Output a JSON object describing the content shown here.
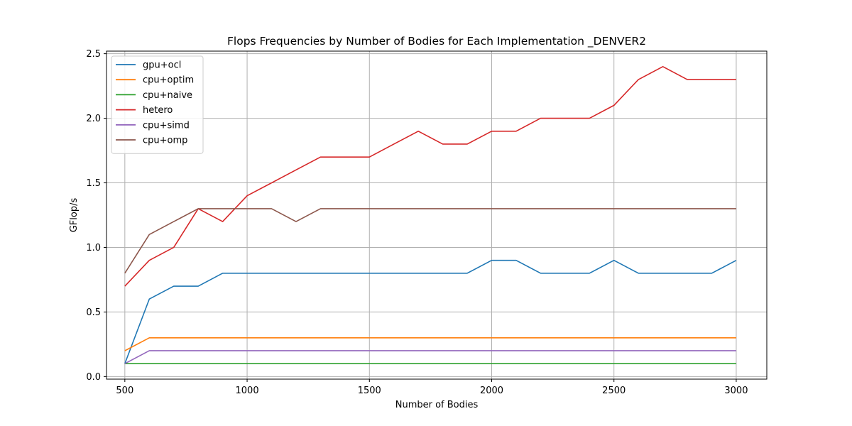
{
  "chart_data": {
    "type": "line",
    "title": "Flops Frequencies by Number of Bodies for Each Implementation _DENVER2",
    "xlabel": "Number of Bodies",
    "ylabel": "GFlop/s",
    "xlim": [
      425,
      3125
    ],
    "ylim": [
      -0.02,
      2.52
    ],
    "xticks": [
      500,
      1000,
      1500,
      2000,
      2500,
      3000
    ],
    "yticks": [
      0.0,
      0.5,
      1.0,
      1.5,
      2.0,
      2.5
    ],
    "xtick_labels": [
      "500",
      "1000",
      "1500",
      "2000",
      "2500",
      "3000"
    ],
    "ytick_labels": [
      "0.0",
      "0.5",
      "1.0",
      "1.5",
      "2.0",
      "2.5"
    ],
    "grid": true,
    "legend_position": "top-left",
    "x": [
      500,
      600,
      700,
      800,
      900,
      1000,
      1100,
      1200,
      1300,
      1400,
      1500,
      1600,
      1700,
      1800,
      1900,
      2000,
      2100,
      2200,
      2300,
      2400,
      2500,
      2600,
      2700,
      2800,
      2900,
      3000
    ],
    "series": [
      {
        "name": "gpu+ocl",
        "color": "#1f77b4",
        "values": [
          0.1,
          0.6,
          0.7,
          0.7,
          0.8,
          0.8,
          0.8,
          0.8,
          0.8,
          0.8,
          0.8,
          0.8,
          0.8,
          0.8,
          0.8,
          0.9,
          0.9,
          0.8,
          0.8,
          0.8,
          0.9,
          0.8,
          0.8,
          0.8,
          0.8,
          0.9
        ]
      },
      {
        "name": "cpu+optim",
        "color": "#ff7f0e",
        "values": [
          0.2,
          0.3,
          0.3,
          0.3,
          0.3,
          0.3,
          0.3,
          0.3,
          0.3,
          0.3,
          0.3,
          0.3,
          0.3,
          0.3,
          0.3,
          0.3,
          0.3,
          0.3,
          0.3,
          0.3,
          0.3,
          0.3,
          0.3,
          0.3,
          0.3,
          0.3
        ]
      },
      {
        "name": "cpu+naive",
        "color": "#2ca02c",
        "values": [
          0.1,
          0.1,
          0.1,
          0.1,
          0.1,
          0.1,
          0.1,
          0.1,
          0.1,
          0.1,
          0.1,
          0.1,
          0.1,
          0.1,
          0.1,
          0.1,
          0.1,
          0.1,
          0.1,
          0.1,
          0.1,
          0.1,
          0.1,
          0.1,
          0.1,
          0.1
        ]
      },
      {
        "name": "hetero",
        "color": "#d62728",
        "values": [
          0.7,
          0.9,
          1.0,
          1.3,
          1.2,
          1.4,
          1.5,
          1.6,
          1.7,
          1.7,
          1.7,
          1.8,
          1.9,
          1.8,
          1.8,
          1.9,
          1.9,
          2.0,
          2.0,
          2.0,
          2.1,
          2.3,
          2.4,
          2.3,
          2.3,
          2.3
        ]
      },
      {
        "name": "cpu+simd",
        "color": "#9467bd",
        "values": [
          0.1,
          0.2,
          0.2,
          0.2,
          0.2,
          0.2,
          0.2,
          0.2,
          0.2,
          0.2,
          0.2,
          0.2,
          0.2,
          0.2,
          0.2,
          0.2,
          0.2,
          0.2,
          0.2,
          0.2,
          0.2,
          0.2,
          0.2,
          0.2,
          0.2,
          0.2
        ]
      },
      {
        "name": "cpu+omp",
        "color": "#8c564b",
        "values": [
          0.8,
          1.1,
          1.2,
          1.3,
          1.3,
          1.3,
          1.3,
          1.2,
          1.3,
          1.3,
          1.3,
          1.3,
          1.3,
          1.3,
          1.3,
          1.3,
          1.3,
          1.3,
          1.3,
          1.3,
          1.3,
          1.3,
          1.3,
          1.3,
          1.3,
          1.3
        ]
      }
    ]
  }
}
